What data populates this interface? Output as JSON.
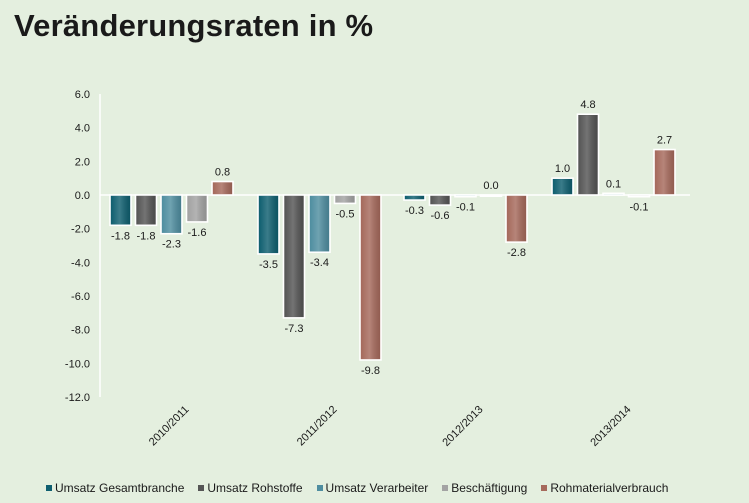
{
  "chart_data": {
    "type": "bar",
    "title": "Veränderungsraten in %",
    "categories": [
      "2010/2011",
      "2011/2012",
      "2012/2013",
      "2013/2014"
    ],
    "series": [
      {
        "name": "Umsatz Gesamtbranche",
        "color": "#0f5f70",
        "values": [
          -1.8,
          -3.5,
          -0.3,
          1.0
        ],
        "labels": [
          "-1.8",
          "-3.5",
          "-0.3",
          "1.0"
        ]
      },
      {
        "name": "Umsatz Rohstoffe",
        "color": "#555555",
        "values": [
          -1.8,
          -7.3,
          -0.6,
          4.8
        ],
        "labels": [
          "-1.8",
          "-7.3",
          "-0.6",
          "4.8"
        ]
      },
      {
        "name": "Umsatz Verarbeiter",
        "color": "#4f8ea0",
        "values": [
          -2.3,
          -3.4,
          -0.1,
          0.1
        ],
        "labels": [
          "-2.3",
          "-3.4",
          "-0.1",
          "0.1"
        ]
      },
      {
        "name": "Beschäftigung",
        "color": "#a3a3a3",
        "values": [
          -1.6,
          -0.5,
          0.0,
          -0.1
        ],
        "labels": [
          "-1.6",
          "-0.5",
          "0.0",
          "-0.1"
        ]
      },
      {
        "name": "Rohmaterialverbrauch",
        "color": "#a66a5c",
        "values": [
          0.8,
          -9.8,
          -2.8,
          2.7
        ],
        "labels": [
          "0.8",
          "-9.8",
          "-2.8",
          "2.7"
        ]
      }
    ],
    "yticks": [
      "6.0",
      "4.0",
      "2.0",
      "0.0",
      "-2.0",
      "-4.0",
      "-6.0",
      "-8.0",
      "-10.0",
      "-12.0"
    ],
    "ylim": [
      -12,
      6
    ],
    "grid": false,
    "legend_position": "bottom"
  }
}
